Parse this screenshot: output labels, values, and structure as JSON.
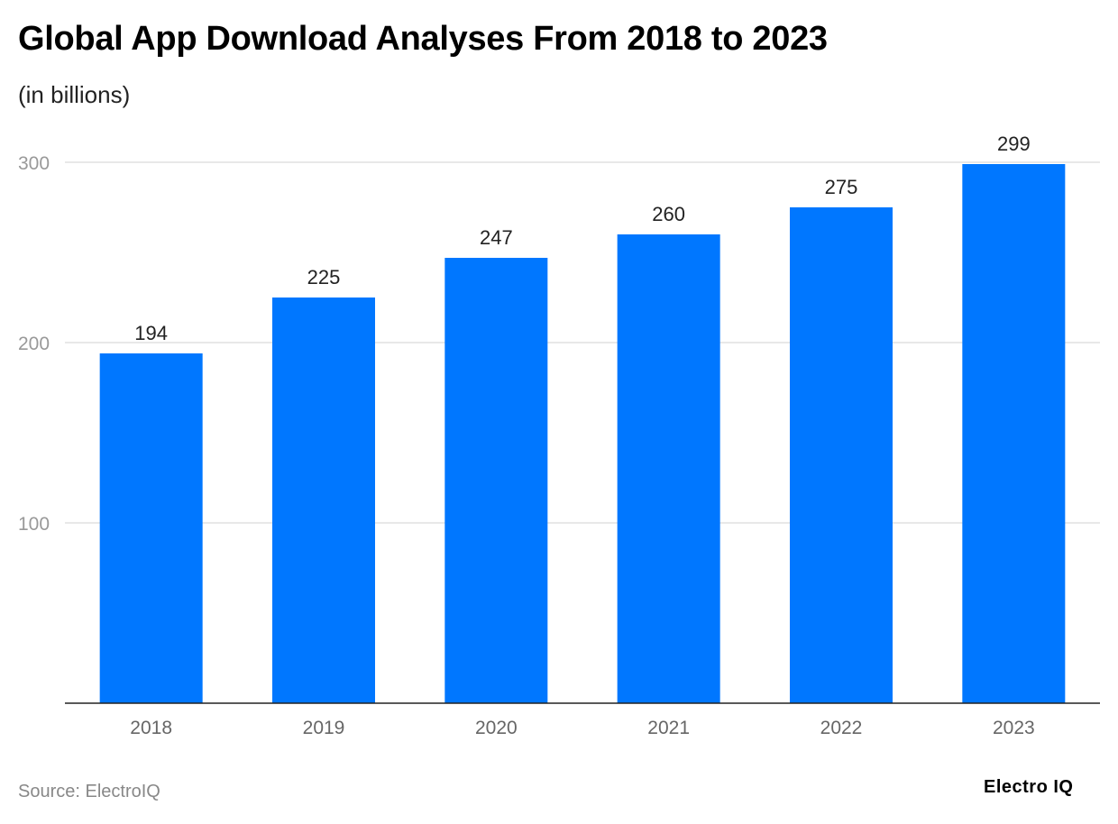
{
  "chart_data": {
    "type": "bar",
    "title": "Global App Download Analyses From 2018 to 2023",
    "subtitle": "(in billions)",
    "categories": [
      "2018",
      "2019",
      "2020",
      "2021",
      "2022",
      "2023"
    ],
    "values": [
      194,
      225,
      247,
      260,
      275,
      299
    ],
    "ylim": [
      0,
      300
    ],
    "yticks": [
      100,
      200,
      300
    ],
    "grid": true,
    "bar_color": "#0077ff",
    "xlabel": "",
    "ylabel": ""
  },
  "source": "Source: ElectroIQ",
  "logo": "Electro IQ"
}
